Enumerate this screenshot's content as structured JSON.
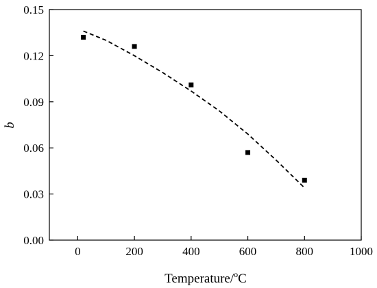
{
  "chart_data": {
    "type": "scatter",
    "xlabel_main": "Temperature/",
    "xlabel_sup": "o",
    "xlabel_unit": "C",
    "ylabel": "b",
    "xlim": [
      -100,
      1000
    ],
    "ylim": [
      0,
      0.15
    ],
    "x_ticks": [
      0,
      200,
      400,
      600,
      800,
      1000
    ],
    "y_ticks": [
      0.0,
      0.03,
      0.06,
      0.09,
      0.12,
      0.15
    ],
    "x_tick_labels": [
      "0",
      "200",
      "400",
      "600",
      "800",
      "1000"
    ],
    "y_tick_labels": [
      "0.00",
      "0.03",
      "0.06",
      "0.09",
      "0.12",
      "0.15"
    ],
    "grid": false,
    "series": [
      {
        "kind": "points",
        "marker": "square",
        "x": [
          20,
          200,
          400,
          600,
          800
        ],
        "y": [
          0.132,
          0.126,
          0.101,
          0.057,
          0.039
        ]
      },
      {
        "kind": "fit",
        "style": "dashed",
        "x": [
          20,
          100,
          200,
          300,
          400,
          500,
          600,
          700,
          800
        ],
        "y": [
          0.136,
          0.13,
          0.12,
          0.109,
          0.097,
          0.084,
          0.069,
          0.052,
          0.034
        ]
      }
    ]
  }
}
